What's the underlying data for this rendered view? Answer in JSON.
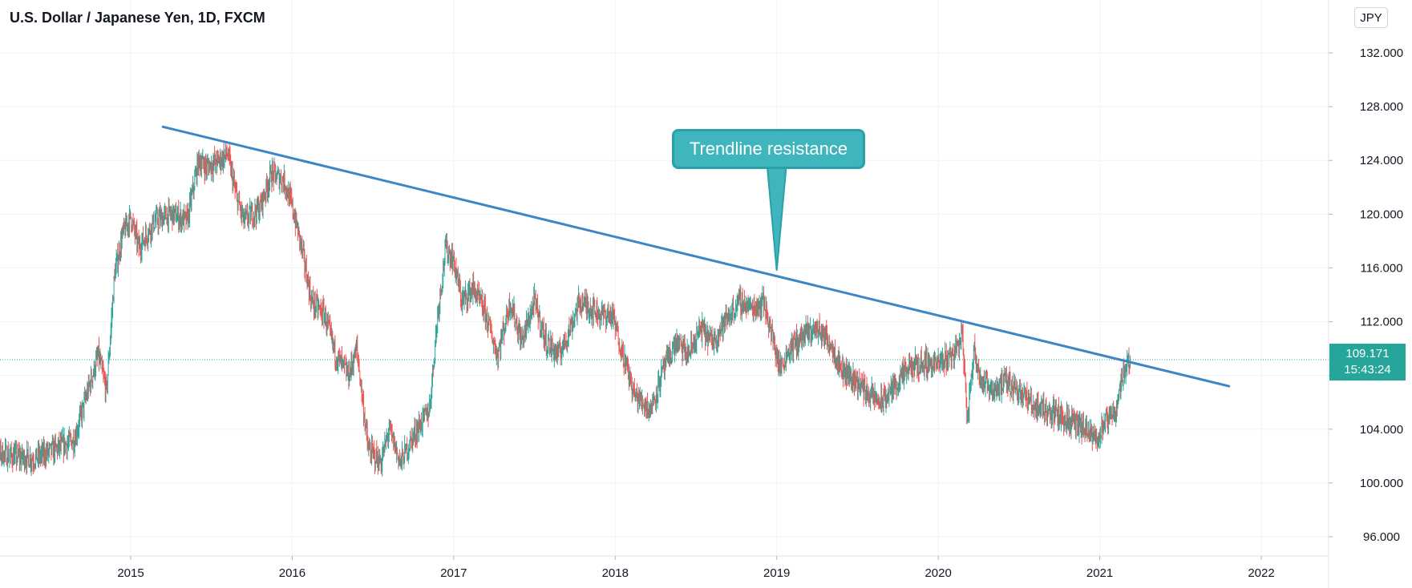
{
  "header": {
    "symbol_title": "U.S. Dollar / Japanese Yen, 1D, FXCM",
    "currency_button": "JPY"
  },
  "price_tag": {
    "price": "109.171",
    "countdown": "15:43:24",
    "color": "#26a69a"
  },
  "annotation": {
    "text": "Trendline resistance",
    "fill_color": "#3fb6bd",
    "border_color": "#2aa0a7"
  },
  "colors": {
    "up_candle": "#26a69a",
    "down_candle": "#ef5350",
    "trendline": "#3d85c6",
    "grid": "#f0f3fa"
  },
  "chart_data": {
    "type": "candlestick",
    "symbol": "USDJPY",
    "timeframe": "1D",
    "source": "FXCM",
    "x_axis": {
      "range": [
        2014.1,
        2022.6
      ],
      "ticks": [
        "2015",
        "2016",
        "2017",
        "2018",
        "2019",
        "2020",
        "2021",
        "2022"
      ],
      "tick_values": [
        2015,
        2016,
        2017,
        2018,
        2019,
        2020,
        2021,
        2022
      ]
    },
    "y_axis": {
      "range": [
        93.0,
        134.5
      ],
      "position": "right",
      "ticks": [
        "96.000",
        "100.000",
        "104.000",
        "108.000",
        "112.000",
        "116.000",
        "120.000",
        "124.000",
        "128.000",
        "132.000"
      ],
      "tick_values": [
        96,
        100,
        104,
        108,
        112,
        116,
        120,
        124,
        128,
        132
      ]
    },
    "grid": true,
    "last_price": 109.171,
    "trendline": {
      "start": {
        "x": 2015.2,
        "y": 126.5
      },
      "end": {
        "x": 2021.8,
        "y": 107.2
      }
    },
    "callout_pointer": {
      "x": 2019.0,
      "y": 115.8
    },
    "price_path": [
      [
        2014.1,
        102.6
      ],
      [
        2014.25,
        102.0
      ],
      [
        2014.4,
        101.8
      ],
      [
        2014.55,
        102.6
      ],
      [
        2014.65,
        103.2
      ],
      [
        2014.75,
        107.5
      ],
      [
        2014.8,
        109.5
      ],
      [
        2014.85,
        106.8
      ],
      [
        2014.9,
        115.5
      ],
      [
        2014.95,
        118.5
      ],
      [
        2015.0,
        119.8
      ],
      [
        2015.05,
        117.5
      ],
      [
        2015.15,
        119.5
      ],
      [
        2015.25,
        120.0
      ],
      [
        2015.35,
        119.5
      ],
      [
        2015.42,
        124.0
      ],
      [
        2015.47,
        123.5
      ],
      [
        2015.55,
        124.0
      ],
      [
        2015.6,
        124.5
      ],
      [
        2015.65,
        121.5
      ],
      [
        2015.7,
        119.5
      ],
      [
        2015.8,
        120.5
      ],
      [
        2015.87,
        123.0
      ],
      [
        2015.95,
        122.5
      ],
      [
        2016.0,
        120.5
      ],
      [
        2016.05,
        118.0
      ],
      [
        2016.12,
        113.5
      ],
      [
        2016.2,
        112.5
      ],
      [
        2016.27,
        109.5
      ],
      [
        2016.35,
        108.0
      ],
      [
        2016.4,
        110.0
      ],
      [
        2016.47,
        102.5
      ],
      [
        2016.55,
        101.5
      ],
      [
        2016.6,
        104.0
      ],
      [
        2016.67,
        101.5
      ],
      [
        2016.75,
        103.5
      ],
      [
        2016.85,
        105.5
      ],
      [
        2016.9,
        112.5
      ],
      [
        2016.95,
        117.5
      ],
      [
        2017.0,
        116.5
      ],
      [
        2017.05,
        113.5
      ],
      [
        2017.12,
        114.5
      ],
      [
        2017.2,
        112.5
      ],
      [
        2017.27,
        109.5
      ],
      [
        2017.35,
        113.5
      ],
      [
        2017.42,
        110.5
      ],
      [
        2017.5,
        113.5
      ],
      [
        2017.57,
        110.5
      ],
      [
        2017.65,
        109.5
      ],
      [
        2017.72,
        111.5
      ],
      [
        2017.78,
        113.5
      ],
      [
        2017.85,
        113.0
      ],
      [
        2017.92,
        112.5
      ],
      [
        2017.98,
        112.5
      ],
      [
        2018.05,
        109.5
      ],
      [
        2018.12,
        106.5
      ],
      [
        2018.22,
        105.5
      ],
      [
        2018.3,
        108.5
      ],
      [
        2018.38,
        110.5
      ],
      [
        2018.45,
        109.5
      ],
      [
        2018.53,
        111.5
      ],
      [
        2018.6,
        110.5
      ],
      [
        2018.68,
        112.0
      ],
      [
        2018.77,
        113.5
      ],
      [
        2018.85,
        113.0
      ],
      [
        2018.92,
        113.5
      ],
      [
        2018.98,
        110.5
      ],
      [
        2019.02,
        108.5
      ],
      [
        2019.08,
        110.0
      ],
      [
        2019.17,
        111.0
      ],
      [
        2019.25,
        111.5
      ],
      [
        2019.33,
        110.5
      ],
      [
        2019.4,
        108.5
      ],
      [
        2019.5,
        107.5
      ],
      [
        2019.58,
        106.5
      ],
      [
        2019.65,
        106.0
      ],
      [
        2019.75,
        107.5
      ],
      [
        2019.82,
        108.5
      ],
      [
        2019.92,
        109.0
      ],
      [
        2020.0,
        108.8
      ],
      [
        2020.1,
        109.8
      ],
      [
        2020.15,
        111.0
      ],
      [
        2020.18,
        104.5
      ],
      [
        2020.22,
        110.0
      ],
      [
        2020.27,
        107.5
      ],
      [
        2020.35,
        107.0
      ],
      [
        2020.42,
        107.5
      ],
      [
        2020.5,
        107.0
      ],
      [
        2020.58,
        105.8
      ],
      [
        2020.66,
        105.5
      ],
      [
        2020.75,
        105.0
      ],
      [
        2020.83,
        104.5
      ],
      [
        2020.9,
        104.0
      ],
      [
        2020.97,
        103.2
      ],
      [
        2021.04,
        104.5
      ],
      [
        2021.1,
        105.5
      ],
      [
        2021.15,
        108.5
      ],
      [
        2021.19,
        109.2
      ]
    ]
  }
}
